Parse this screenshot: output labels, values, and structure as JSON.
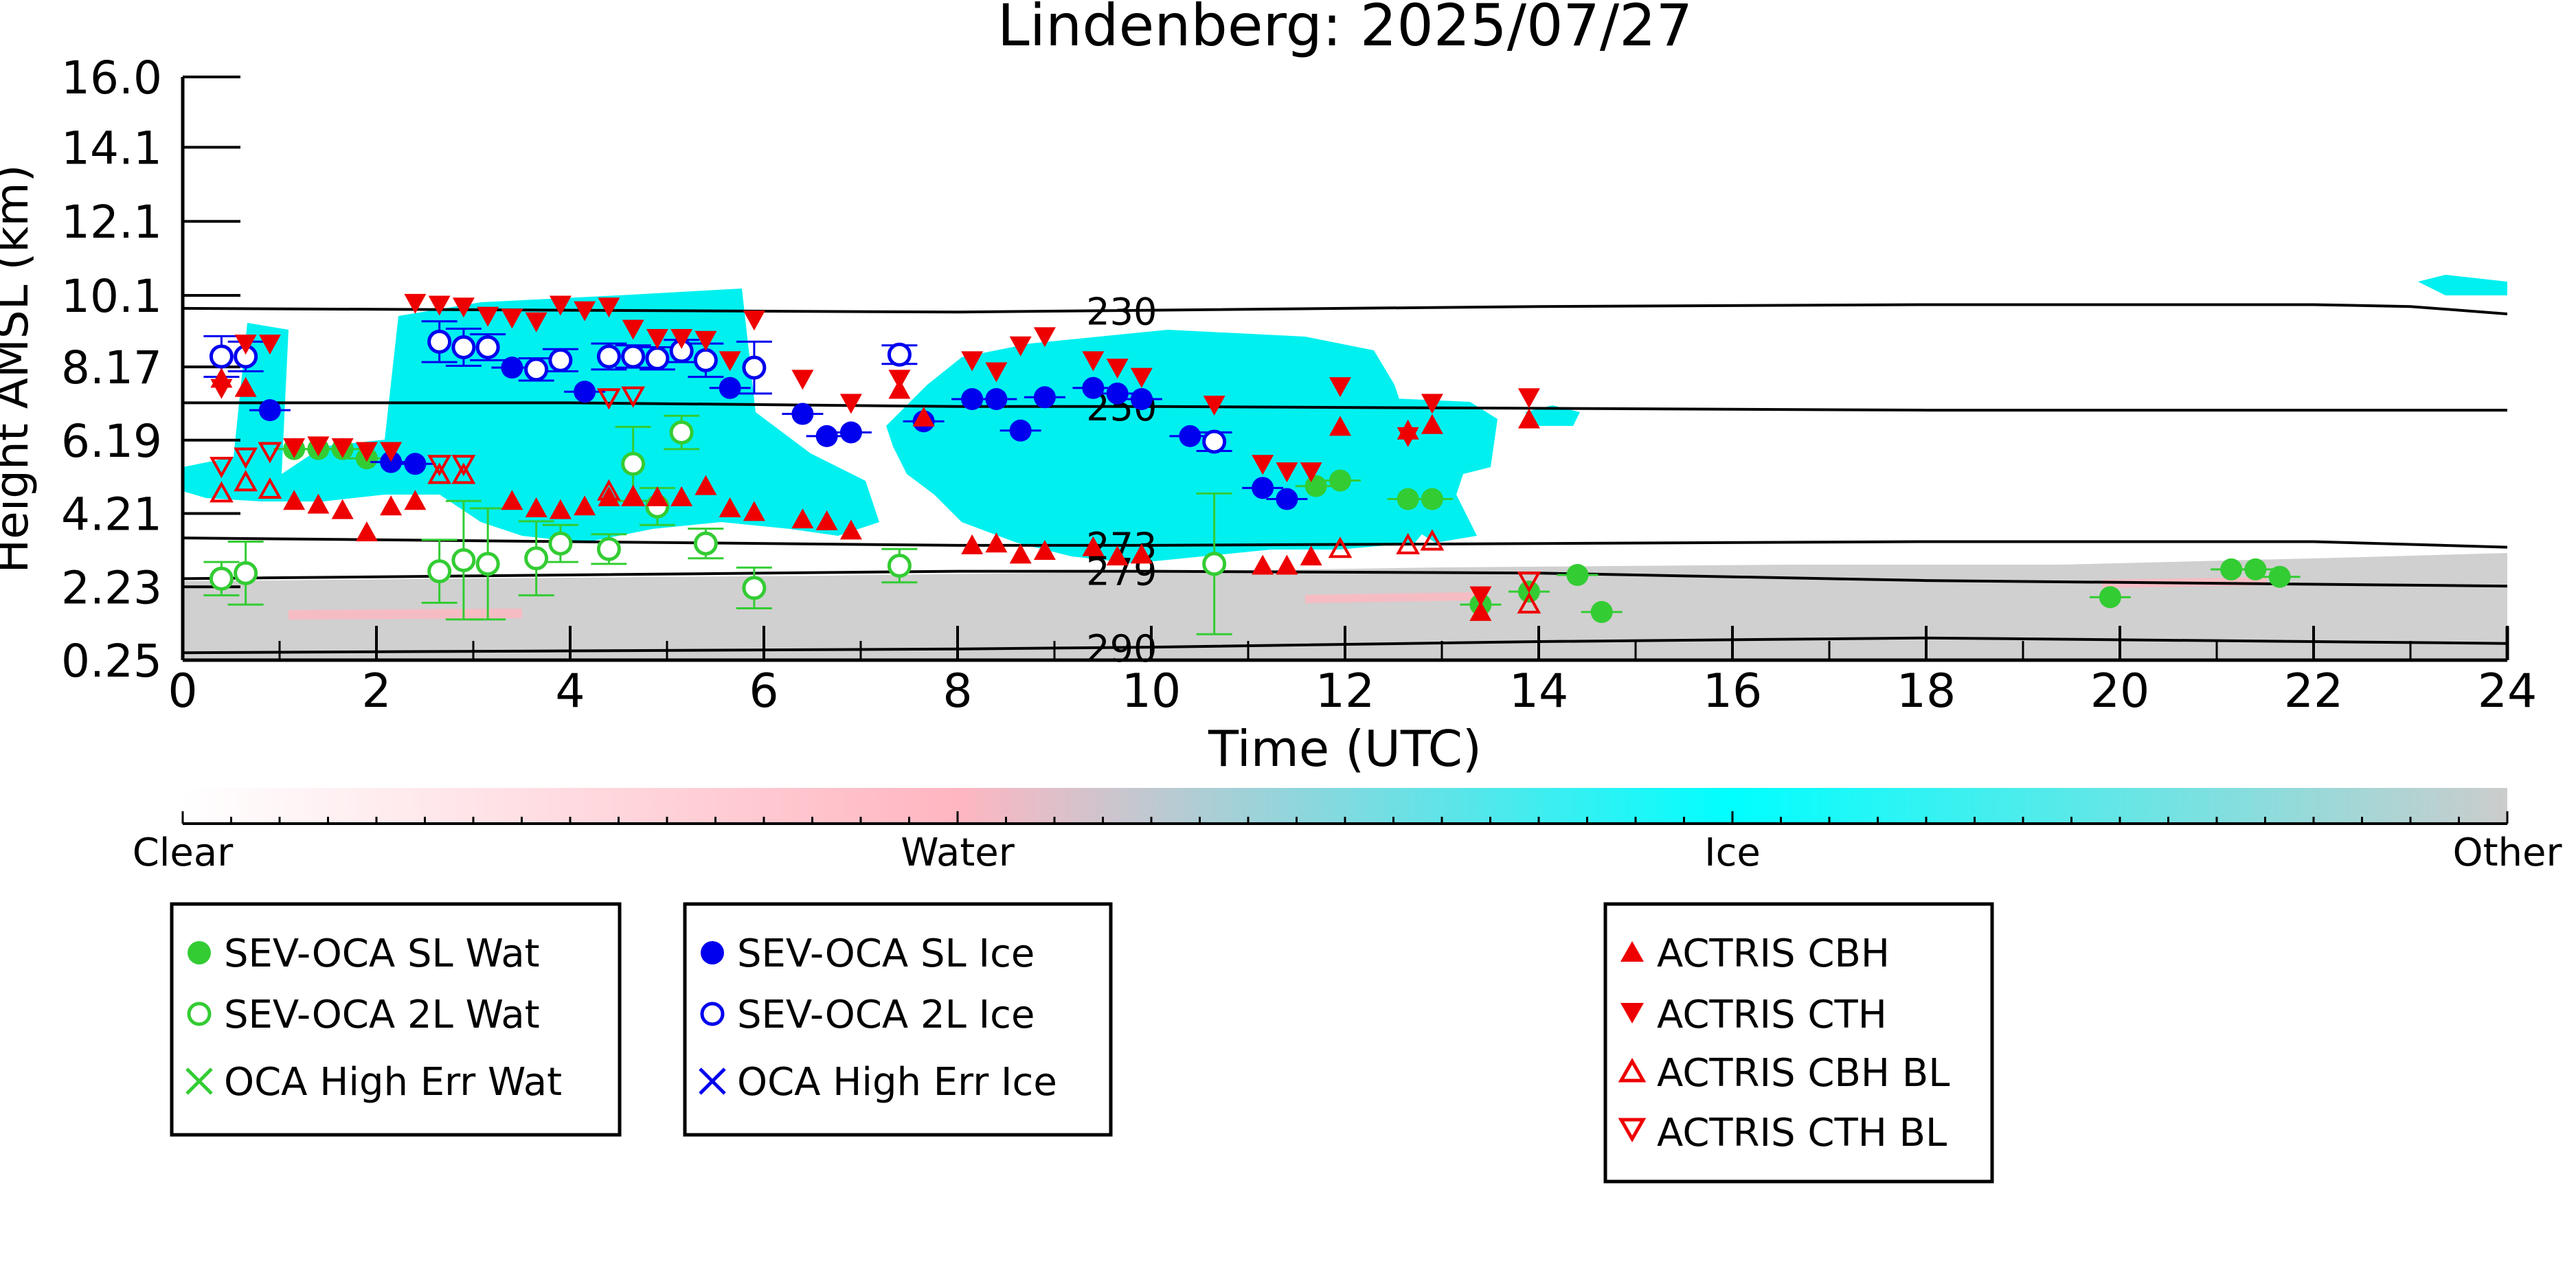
{
  "chart_data": {
    "type": "scatter",
    "title": "Lindenberg: 2025/07/27",
    "xlabel": "Time (UTC)",
    "ylabel": "Height AMSL (km)",
    "xlim": [
      0,
      24
    ],
    "ylim": [
      0.25,
      16.0
    ],
    "x_ticks": [
      "0",
      "2",
      "4",
      "6",
      "8",
      "10",
      "12",
      "14",
      "16",
      "18",
      "20",
      "22",
      "24"
    ],
    "y_ticks": [
      "0.25",
      "2.23",
      "4.21",
      "6.19",
      "8.17",
      "10.1",
      "12.1",
      "14.1",
      "16.0"
    ],
    "colorbar": {
      "labels": [
        "Clear",
        "Water",
        "Ice",
        "Other"
      ],
      "colors": [
        "#ffffff",
        "#ffb6c1",
        "#00ffff",
        "#cccccc"
      ]
    },
    "isotherms": [
      {
        "label": "230",
        "label_x": 9.3,
        "points": [
          [
            0,
            9.75
          ],
          [
            4,
            9.7
          ],
          [
            8,
            9.65
          ],
          [
            10,
            9.7
          ],
          [
            14,
            9.8
          ],
          [
            18,
            9.85
          ],
          [
            22,
            9.85
          ],
          [
            23,
            9.8
          ],
          [
            24,
            9.6
          ]
        ]
      },
      {
        "label": "250",
        "label_x": 9.3,
        "points": [
          [
            0,
            7.2
          ],
          [
            4,
            7.2
          ],
          [
            8,
            7.1
          ],
          [
            10,
            7.1
          ],
          [
            14,
            7.05
          ],
          [
            18,
            7.0
          ],
          [
            22,
            7.0
          ],
          [
            24,
            7.0
          ]
        ]
      },
      {
        "label": "273",
        "label_x": 9.3,
        "points": [
          [
            0,
            3.55
          ],
          [
            4,
            3.45
          ],
          [
            8,
            3.35
          ],
          [
            10,
            3.35
          ],
          [
            14,
            3.4
          ],
          [
            18,
            3.45
          ],
          [
            22,
            3.45
          ],
          [
            24,
            3.3
          ]
        ]
      },
      {
        "label": "279",
        "label_x": 9.3,
        "points": [
          [
            0,
            2.45
          ],
          [
            4,
            2.55
          ],
          [
            8,
            2.65
          ],
          [
            10,
            2.65
          ],
          [
            14,
            2.6
          ],
          [
            18,
            2.4
          ],
          [
            22,
            2.3
          ],
          [
            24,
            2.25
          ]
        ]
      },
      {
        "label": "290",
        "label_x": 9.3,
        "points": [
          [
            0,
            0.45
          ],
          [
            4,
            0.5
          ],
          [
            8,
            0.55
          ],
          [
            10,
            0.6
          ],
          [
            14,
            0.75
          ],
          [
            18,
            0.85
          ],
          [
            22,
            0.75
          ],
          [
            24,
            0.7
          ]
        ]
      }
    ],
    "series": [
      {
        "name": "SEV-OCA SL Wat",
        "color": "#33cc33",
        "marker": "circle-filled",
        "points": [
          [
            1.15,
            5.95
          ],
          [
            1.4,
            5.95
          ],
          [
            1.65,
            5.95
          ],
          [
            1.9,
            5.7
          ],
          [
            11.7,
            4.95
          ],
          [
            11.95,
            5.1
          ],
          [
            12.65,
            4.6
          ],
          [
            12.9,
            4.6
          ],
          [
            13.4,
            1.75
          ],
          [
            13.9,
            2.1
          ],
          [
            14.4,
            2.55
          ],
          [
            14.65,
            1.55
          ],
          [
            19.9,
            1.95
          ],
          [
            21.15,
            2.7
          ],
          [
            21.4,
            2.7
          ],
          [
            21.65,
            2.5
          ]
        ]
      },
      {
        "name": "SEV-OCA 2L Wat",
        "color": "#33cc33",
        "marker": "circle-open",
        "points": [
          [
            0.4,
            2.45
          ],
          [
            0.65,
            2.6
          ],
          [
            2.65,
            2.65
          ],
          [
            2.9,
            2.95
          ],
          [
            3.15,
            2.85
          ],
          [
            3.65,
            3.0
          ],
          [
            3.9,
            3.4
          ],
          [
            4.4,
            3.25
          ],
          [
            4.65,
            5.55
          ],
          [
            4.9,
            4.4
          ],
          [
            5.15,
            6.4
          ],
          [
            5.4,
            3.4
          ],
          [
            5.9,
            2.2
          ],
          [
            7.4,
            2.8
          ],
          [
            10.65,
            2.85
          ]
        ],
        "errors": [
          [
            0.4,
            0.45
          ],
          [
            0.65,
            0.85
          ],
          [
            2.65,
            0.85
          ],
          [
            2.9,
            1.6
          ],
          [
            3.15,
            1.5
          ],
          [
            3.65,
            1.0
          ],
          [
            3.9,
            0.5
          ],
          [
            4.4,
            0.4
          ],
          [
            4.65,
            1.0
          ],
          [
            4.9,
            0.5
          ],
          [
            5.15,
            0.45
          ],
          [
            5.4,
            0.4
          ],
          [
            5.9,
            0.55
          ],
          [
            7.4,
            0.45
          ],
          [
            10.65,
            1.9
          ]
        ]
      },
      {
        "name": "OCA High Err Wat",
        "color": "#33cc33",
        "marker": "x",
        "points": []
      },
      {
        "name": "SEV-OCA SL Ice",
        "color": "#0000ee",
        "marker": "circle-filled",
        "points": [
          [
            0.9,
            7.0
          ],
          [
            2.15,
            5.6
          ],
          [
            2.4,
            5.55
          ],
          [
            3.4,
            8.15
          ],
          [
            4.15,
            7.5
          ],
          [
            5.65,
            7.6
          ],
          [
            6.4,
            6.9
          ],
          [
            6.65,
            6.3
          ],
          [
            6.9,
            6.4
          ],
          [
            7.65,
            6.7
          ],
          [
            8.15,
            7.3
          ],
          [
            8.4,
            7.3
          ],
          [
            8.65,
            6.45
          ],
          [
            8.9,
            7.35
          ],
          [
            9.4,
            7.6
          ],
          [
            9.65,
            7.45
          ],
          [
            9.9,
            7.3
          ],
          [
            10.4,
            6.3
          ],
          [
            11.15,
            4.9
          ],
          [
            11.4,
            4.6
          ]
        ]
      },
      {
        "name": "SEV-OCA 2L Ice",
        "color": "#0000ee",
        "marker": "circle-open",
        "points": [
          [
            0.4,
            8.45
          ],
          [
            0.65,
            8.45
          ],
          [
            2.65,
            8.85
          ],
          [
            2.9,
            8.7
          ],
          [
            3.15,
            8.7
          ],
          [
            3.65,
            8.1
          ],
          [
            3.9,
            8.35
          ],
          [
            4.4,
            8.45
          ],
          [
            4.65,
            8.45
          ],
          [
            4.9,
            8.4
          ],
          [
            5.15,
            8.6
          ],
          [
            5.4,
            8.35
          ],
          [
            5.9,
            8.15
          ],
          [
            7.4,
            8.5
          ],
          [
            10.65,
            6.15
          ]
        ],
        "errors": [
          [
            0.4,
            0.55
          ],
          [
            0.65,
            0.4
          ],
          [
            2.65,
            0.55
          ],
          [
            2.9,
            0.5
          ],
          [
            3.15,
            0.35
          ],
          [
            3.65,
            0.3
          ],
          [
            3.9,
            0.3
          ],
          [
            4.4,
            0.35
          ],
          [
            4.65,
            0.3
          ],
          [
            4.9,
            0.3
          ],
          [
            5.15,
            0.3
          ],
          [
            5.4,
            0.45
          ],
          [
            5.9,
            0.7
          ],
          [
            7.4,
            0.25
          ],
          [
            10.65,
            0.25
          ]
        ]
      },
      {
        "name": "OCA High Err Ice",
        "color": "#0000ee",
        "marker": "x",
        "points": []
      },
      {
        "name": "ACTRIS CBH",
        "color": "#ee0000",
        "marker": "triangle-up-filled",
        "points": [
          [
            0.4,
            7.85
          ],
          [
            0.65,
            7.6
          ],
          [
            1.15,
            4.55
          ],
          [
            1.4,
            4.45
          ],
          [
            1.65,
            4.3
          ],
          [
            1.9,
            3.7
          ],
          [
            2.15,
            4.4
          ],
          [
            2.4,
            4.55
          ],
          [
            3.4,
            4.55
          ],
          [
            3.65,
            4.35
          ],
          [
            3.9,
            4.3
          ],
          [
            4.15,
            4.4
          ],
          [
            4.4,
            4.65
          ],
          [
            4.65,
            4.65
          ],
          [
            4.9,
            4.65
          ],
          [
            5.15,
            4.65
          ],
          [
            5.4,
            4.95
          ],
          [
            5.65,
            4.35
          ],
          [
            5.9,
            4.25
          ],
          [
            6.4,
            4.05
          ],
          [
            6.65,
            4.0
          ],
          [
            6.9,
            3.75
          ],
          [
            7.4,
            7.55
          ],
          [
            7.65,
            6.8
          ],
          [
            8.15,
            3.35
          ],
          [
            8.4,
            3.4
          ],
          [
            8.65,
            3.1
          ],
          [
            8.9,
            3.2
          ],
          [
            9.4,
            3.3
          ],
          [
            9.65,
            3.05
          ],
          [
            9.9,
            3.1
          ],
          [
            11.15,
            2.8
          ],
          [
            11.4,
            2.8
          ],
          [
            11.65,
            3.05
          ],
          [
            11.95,
            6.55
          ],
          [
            12.65,
            6.45
          ],
          [
            12.9,
            6.6
          ],
          [
            13.4,
            1.55
          ],
          [
            13.9,
            6.75
          ]
        ]
      },
      {
        "name": "ACTRIS CTH",
        "color": "#ee0000",
        "marker": "triangle-down-filled",
        "points": [
          [
            0.4,
            7.6
          ],
          [
            0.65,
            8.8
          ],
          [
            0.9,
            8.8
          ],
          [
            1.15,
            6.0
          ],
          [
            1.4,
            6.05
          ],
          [
            1.65,
            6.0
          ],
          [
            1.9,
            5.9
          ],
          [
            2.15,
            5.9
          ],
          [
            2.4,
            9.9
          ],
          [
            2.65,
            9.85
          ],
          [
            2.9,
            9.8
          ],
          [
            3.15,
            9.55
          ],
          [
            3.4,
            9.5
          ],
          [
            3.65,
            9.4
          ],
          [
            3.9,
            9.85
          ],
          [
            4.15,
            9.7
          ],
          [
            4.4,
            9.8
          ],
          [
            4.65,
            9.2
          ],
          [
            4.9,
            8.95
          ],
          [
            5.15,
            8.95
          ],
          [
            5.4,
            8.9
          ],
          [
            5.65,
            8.35
          ],
          [
            5.9,
            9.45
          ],
          [
            6.4,
            7.85
          ],
          [
            6.9,
            7.2
          ],
          [
            7.4,
            7.85
          ],
          [
            8.15,
            8.35
          ],
          [
            8.4,
            8.05
          ],
          [
            8.65,
            8.75
          ],
          [
            8.9,
            9.0
          ],
          [
            9.4,
            8.35
          ],
          [
            9.65,
            8.15
          ],
          [
            9.9,
            7.9
          ],
          [
            10.65,
            7.15
          ],
          [
            11.15,
            5.55
          ],
          [
            11.4,
            5.35
          ],
          [
            11.65,
            5.35
          ],
          [
            11.95,
            7.65
          ],
          [
            12.65,
            6.3
          ],
          [
            12.9,
            7.2
          ],
          [
            13.4,
            2.0
          ],
          [
            13.9,
            7.35
          ]
        ]
      },
      {
        "name": "ACTRIS CBH BL",
        "color": "#ee0000",
        "marker": "triangle-up-open",
        "points": [
          [
            0.4,
            4.75
          ],
          [
            0.65,
            5.05
          ],
          [
            0.9,
            4.85
          ],
          [
            2.65,
            5.25
          ],
          [
            2.9,
            5.25
          ],
          [
            4.4,
            4.8
          ],
          [
            4.65,
            4.65
          ],
          [
            11.95,
            3.25
          ],
          [
            12.65,
            3.35
          ],
          [
            12.9,
            3.45
          ],
          [
            13.9,
            1.75
          ]
        ]
      },
      {
        "name": "ACTRIS CTH BL",
        "color": "#ee0000",
        "marker": "triangle-down-open",
        "points": [
          [
            0.4,
            5.5
          ],
          [
            0.65,
            5.75
          ],
          [
            0.9,
            5.9
          ],
          [
            2.65,
            5.55
          ],
          [
            2.9,
            5.55
          ],
          [
            4.4,
            7.35
          ],
          [
            4.65,
            7.4
          ],
          [
            13.9,
            2.4
          ]
        ]
      }
    ],
    "legend_groups": [
      {
        "position": "bottom-left",
        "entries": [
          "SEV-OCA SL Wat",
          "SEV-OCA 2L Wat",
          "OCA High Err Wat"
        ]
      },
      {
        "position": "bottom-center-left",
        "entries": [
          "SEV-OCA SL Ice",
          "SEV-OCA 2L Ice",
          "OCA High Err Ice"
        ]
      },
      {
        "position": "bottom-center-right",
        "entries": [
          "ACTRIS CBH",
          "ACTRIS CTH",
          "ACTRIS CBH BL",
          "ACTRIS CTH BL"
        ]
      }
    ],
    "grid": false
  }
}
